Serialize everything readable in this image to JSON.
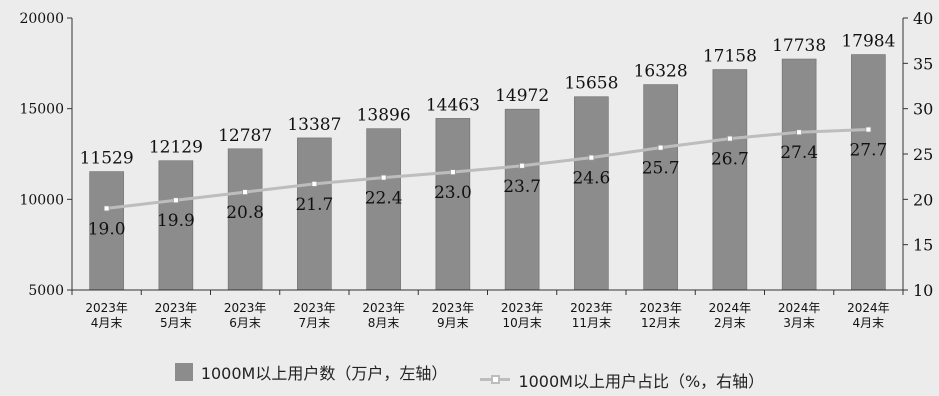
{
  "chart_data": {
    "type": "bar",
    "categories": [
      "2023年\n4月末",
      "2023年\n5月末",
      "2023年\n6月末",
      "2023年\n7月末",
      "2023年\n8月末",
      "2023年\n9月末",
      "2023年\n10月末",
      "2023年\n11月末",
      "2023年\n12月末",
      "2024年\n2月末",
      "2024年\n3月末",
      "2024年\n4月末"
    ],
    "series": [
      {
        "name": "1000M以上用户数（万户，左轴）",
        "type": "bar",
        "axis": "left",
        "values": [
          11529,
          12129,
          12787,
          13387,
          13896,
          14463,
          14972,
          15658,
          16328,
          17158,
          17738,
          17984
        ]
      },
      {
        "name": "1000M以上用户占比（%，右轴）",
        "type": "line",
        "axis": "right",
        "values": [
          19.0,
          19.9,
          20.8,
          21.7,
          22.4,
          23.0,
          23.7,
          24.6,
          25.7,
          26.7,
          27.4,
          27.7
        ]
      }
    ],
    "ylim_left": [
      5000,
      20000
    ],
    "yticks_left": [
      5000,
      10000,
      15000,
      20000
    ],
    "ylim_right": [
      10,
      40
    ],
    "yticks_right": [
      10,
      15,
      20,
      25,
      30,
      35,
      40
    ],
    "colors": {
      "bar": "#8c8c8c",
      "line": "#bdbdbd",
      "marker_fill": "#ffffff",
      "background": "#ececec"
    },
    "grid": false,
    "legend_position": "bottom"
  }
}
